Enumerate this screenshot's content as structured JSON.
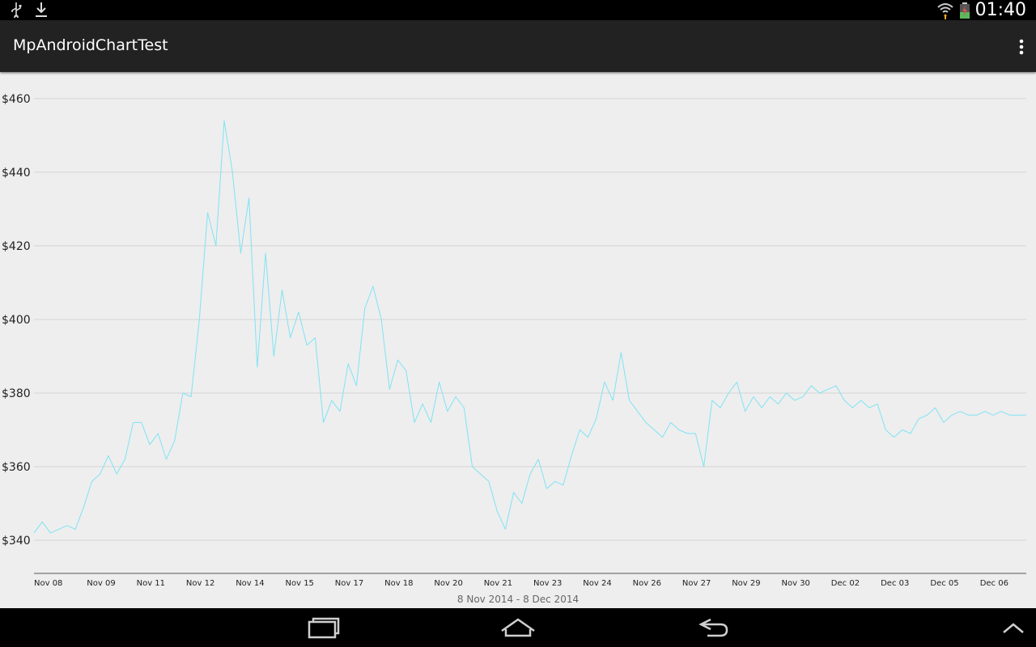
{
  "status_bar": {
    "time": "01:40",
    "icons": [
      "usb-icon",
      "download-icon",
      "wifi-icon",
      "battery-icon"
    ]
  },
  "action_bar": {
    "title": "MpAndroidChartTest",
    "overflow_icon": "overflow-menu-icon"
  },
  "chart": {
    "date_range": "8 Nov 2014 - 8 Dec 2014"
  },
  "chart_data": {
    "type": "line",
    "title": "",
    "xlabel": "8 Nov 2014 - 8 Dec 2014",
    "ylabel": "",
    "x_tick_labels": [
      "Nov 08",
      "Nov 09",
      "Nov 11",
      "Nov 12",
      "Nov 14",
      "Nov 15",
      "Nov 17",
      "Nov 18",
      "Nov 20",
      "Nov 21",
      "Nov 23",
      "Nov 24",
      "Nov 26",
      "Nov 27",
      "Nov 29",
      "Nov 30",
      "Dec 02",
      "Dec 03",
      "Dec 05",
      "Dec 06"
    ],
    "y_tick_labels": [
      "$340",
      "$360",
      "$380",
      "$400",
      "$420",
      "$440",
      "$460"
    ],
    "y_ticks": [
      340,
      360,
      380,
      400,
      420,
      440,
      460
    ],
    "ylim": [
      331,
      467
    ],
    "xlim": [
      "2014-11-08",
      "2014-12-08"
    ],
    "grid": "horizontal",
    "legend": "none",
    "series": [
      {
        "color": "#7fe3f4",
        "points": [
          [
            "2014-11-08",
            342
          ],
          [
            "2014-11-08T06:00",
            345
          ],
          [
            "2014-11-08T12:00",
            342
          ],
          [
            "2014-11-08T18:00",
            343
          ],
          [
            "2014-11-09",
            344
          ],
          [
            "2014-11-09T06:00",
            343
          ],
          [
            "2014-11-09T12:00",
            349
          ],
          [
            "2014-11-09T18:00",
            356
          ],
          [
            "2014-11-10",
            358
          ],
          [
            "2014-11-10T06:00",
            363
          ],
          [
            "2014-11-10T12:00",
            358
          ],
          [
            "2014-11-10T18:00",
            362
          ],
          [
            "2014-11-11",
            372
          ],
          [
            "2014-11-11T06:00",
            372
          ],
          [
            "2014-11-11T12:00",
            366
          ],
          [
            "2014-11-11T18:00",
            369
          ],
          [
            "2014-11-12",
            362
          ],
          [
            "2014-11-12T06:00",
            367
          ],
          [
            "2014-11-12T12:00",
            380
          ],
          [
            "2014-11-12T18:00",
            379
          ],
          [
            "2014-11-13",
            400
          ],
          [
            "2014-11-13T06:00",
            429
          ],
          [
            "2014-11-13T12:00",
            420
          ],
          [
            "2014-11-13T18:00",
            454
          ],
          [
            "2014-11-14",
            440
          ],
          [
            "2014-11-14T06:00",
            418
          ],
          [
            "2014-11-14T12:00",
            433
          ],
          [
            "2014-11-14T18:00",
            387
          ],
          [
            "2014-11-15",
            418
          ],
          [
            "2014-11-15T06:00",
            390
          ],
          [
            "2014-11-15T12:00",
            408
          ],
          [
            "2014-11-15T18:00",
            395
          ],
          [
            "2014-11-16",
            402
          ],
          [
            "2014-11-16T06:00",
            393
          ],
          [
            "2014-11-16T12:00",
            395
          ],
          [
            "2014-11-16T18:00",
            372
          ],
          [
            "2014-11-17",
            378
          ],
          [
            "2014-11-17T06:00",
            375
          ],
          [
            "2014-11-17T12:00",
            388
          ],
          [
            "2014-11-17T18:00",
            382
          ],
          [
            "2014-11-18",
            403
          ],
          [
            "2014-11-18T06:00",
            409
          ],
          [
            "2014-11-18T12:00",
            400
          ],
          [
            "2014-11-18T18:00",
            381
          ],
          [
            "2014-11-19",
            389
          ],
          [
            "2014-11-19T06:00",
            386
          ],
          [
            "2014-11-19T12:00",
            372
          ],
          [
            "2014-11-19T18:00",
            377
          ],
          [
            "2014-11-20",
            372
          ],
          [
            "2014-11-20T06:00",
            383
          ],
          [
            "2014-11-20T12:00",
            375
          ],
          [
            "2014-11-20T18:00",
            379
          ],
          [
            "2014-11-21",
            376
          ],
          [
            "2014-11-21T06:00",
            360
          ],
          [
            "2014-11-21T12:00",
            358
          ],
          [
            "2014-11-21T18:00",
            356
          ],
          [
            "2014-11-22",
            348
          ],
          [
            "2014-11-22T06:00",
            343
          ],
          [
            "2014-11-22T12:00",
            353
          ],
          [
            "2014-11-22T18:00",
            350
          ],
          [
            "2014-11-23",
            358
          ],
          [
            "2014-11-23T06:00",
            362
          ],
          [
            "2014-11-23T12:00",
            354
          ],
          [
            "2014-11-23T18:00",
            356
          ],
          [
            "2014-11-24",
            355
          ],
          [
            "2014-11-24T06:00",
            363
          ],
          [
            "2014-11-24T12:00",
            370
          ],
          [
            "2014-11-24T18:00",
            368
          ],
          [
            "2014-11-25",
            373
          ],
          [
            "2014-11-25T06:00",
            383
          ],
          [
            "2014-11-25T12:00",
            378
          ],
          [
            "2014-11-25T18:00",
            391
          ],
          [
            "2014-11-26",
            378
          ],
          [
            "2014-11-26T06:00",
            375
          ],
          [
            "2014-11-26T12:00",
            372
          ],
          [
            "2014-11-26T18:00",
            370
          ],
          [
            "2014-11-27",
            368
          ],
          [
            "2014-11-27T06:00",
            372
          ],
          [
            "2014-11-27T12:00",
            370
          ],
          [
            "2014-11-27T18:00",
            369
          ],
          [
            "2014-11-28",
            369
          ],
          [
            "2014-11-28T06:00",
            360
          ],
          [
            "2014-11-28T12:00",
            378
          ],
          [
            "2014-11-28T18:00",
            376
          ],
          [
            "2014-11-29",
            380
          ],
          [
            "2014-11-29T06:00",
            383
          ],
          [
            "2014-11-29T12:00",
            375
          ],
          [
            "2014-11-29T18:00",
            379
          ],
          [
            "2014-11-30",
            376
          ],
          [
            "2014-11-30T06:00",
            379
          ],
          [
            "2014-11-30T12:00",
            377
          ],
          [
            "2014-11-30T18:00",
            380
          ],
          [
            "2014-12-01",
            378
          ],
          [
            "2014-12-01T06:00",
            379
          ],
          [
            "2014-12-01T12:00",
            382
          ],
          [
            "2014-12-01T18:00",
            380
          ],
          [
            "2014-12-02",
            381
          ],
          [
            "2014-12-02T06:00",
            382
          ],
          [
            "2014-12-02T12:00",
            378
          ],
          [
            "2014-12-02T18:00",
            376
          ],
          [
            "2014-12-03",
            378
          ],
          [
            "2014-12-03T06:00",
            376
          ],
          [
            "2014-12-03T12:00",
            377
          ],
          [
            "2014-12-03T18:00",
            370
          ],
          [
            "2014-12-04",
            368
          ],
          [
            "2014-12-04T06:00",
            370
          ],
          [
            "2014-12-04T12:00",
            369
          ],
          [
            "2014-12-04T18:00",
            373
          ],
          [
            "2014-12-05",
            374
          ],
          [
            "2014-12-05T06:00",
            376
          ],
          [
            "2014-12-05T12:00",
            372
          ],
          [
            "2014-12-05T18:00",
            374
          ],
          [
            "2014-12-06",
            375
          ],
          [
            "2014-12-06T06:00",
            374
          ],
          [
            "2014-12-06T12:00",
            374
          ],
          [
            "2014-12-06T18:00",
            375
          ],
          [
            "2014-12-07",
            374
          ],
          [
            "2014-12-07T06:00",
            375
          ],
          [
            "2014-12-07T12:00",
            374
          ],
          [
            "2014-12-07T18:00",
            374
          ],
          [
            "2014-12-08",
            374
          ]
        ]
      }
    ]
  },
  "nav_bar": {
    "icons": [
      "recent-apps-icon",
      "home-icon",
      "back-icon",
      "expand-up-icon"
    ]
  }
}
